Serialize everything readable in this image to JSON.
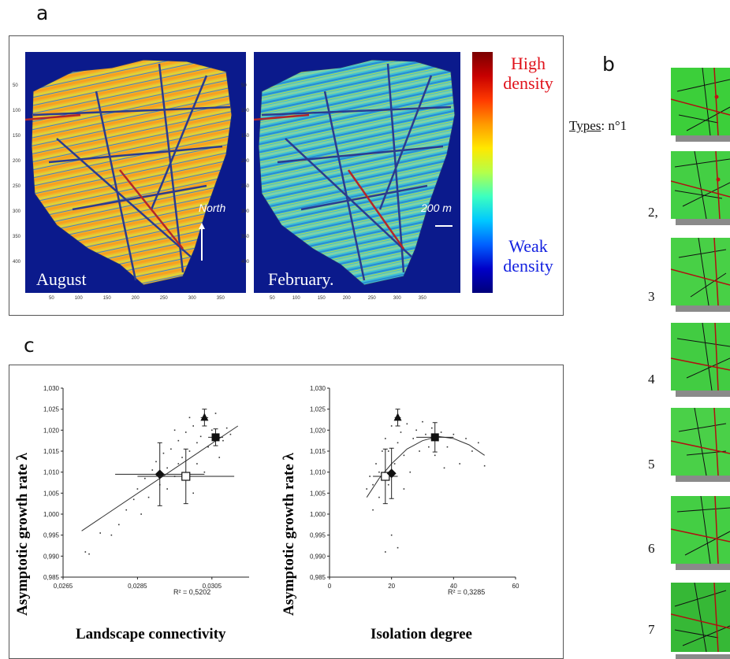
{
  "panels": {
    "a": "a",
    "b": "b",
    "c": "c"
  },
  "maps": {
    "left_label": "August",
    "right_label": "February.",
    "north_label": "North",
    "scale_label": "200 m",
    "y_ticks": [
      "50",
      "100",
      "150",
      "200",
      "250",
      "300",
      "350",
      "400"
    ],
    "x_ticks": [
      "50",
      "100",
      "150",
      "200",
      "250",
      "300",
      "350"
    ]
  },
  "colorbar": {
    "high_line1": "High",
    "high_line2": "density",
    "weak_line1": "Weak",
    "weak_line2": "density",
    "colors": {
      "high": "#e0121b",
      "weak": "#1422e0"
    }
  },
  "types": {
    "header": "Types",
    "first_suffix": ": n°1",
    "labels": [
      "2,",
      "3",
      "4",
      "5",
      "6",
      "7"
    ]
  },
  "charts_text": {
    "ylabel": "Asymptotic growth rate λ",
    "left_xlabel": "Landscape connectivity",
    "right_xlabel": "Isolation degree",
    "left_r2": "R² = 0,5202",
    "right_r2": "R² = 0,3285",
    "left_y_ticks": [
      "1,030",
      "1,025",
      "1,020",
      "1,015",
      "1,010",
      "1,005",
      "1,000",
      "0,995",
      "0,990",
      "0,985"
    ],
    "right_y_ticks": [
      "1,030",
      "1,025",
      "1,020",
      "1,015",
      "1,010",
      "1,005",
      "1,000",
      "0,995",
      "0,990",
      "0,985"
    ],
    "left_x_ticks": [
      "0,0265",
      "0,0285",
      "0,0305"
    ],
    "right_x_ticks": [
      "0",
      "20",
      "40",
      "60"
    ]
  },
  "chart_data": [
    {
      "type": "scatter",
      "xlabel": "Landscape connectivity",
      "ylabel": "Asymptotic growth rate λ",
      "xlim": [
        0.0265,
        0.0315
      ],
      "ylim": [
        0.985,
        1.03
      ],
      "r_squared": 0.5202,
      "fit": "linear",
      "fit_line": [
        [
          0.027,
          0.996
        ],
        [
          0.0312,
          1.021
        ]
      ],
      "group_means": [
        {
          "marker": "diamond",
          "x": 0.0291,
          "y": 1.0095,
          "xerr": 0.0012,
          "yerr": 0.0075
        },
        {
          "marker": "open-square",
          "x": 0.0298,
          "y": 1.009,
          "xerr": 0.0013,
          "yerr": 0.0065
        },
        {
          "marker": "triangle",
          "x": 0.0303,
          "y": 1.023,
          "xerr": 0.0001,
          "yerr": 0.002
        },
        {
          "marker": "square",
          "x": 0.0306,
          "y": 1.0183,
          "xerr": 0.0002,
          "yerr": 0.002
        }
      ],
      "points": [
        [
          0.0271,
          0.991
        ],
        [
          0.0272,
          0.9905
        ],
        [
          0.0275,
          0.9955
        ],
        [
          0.0278,
          0.995
        ],
        [
          0.028,
          0.9975
        ],
        [
          0.0282,
          1.001
        ],
        [
          0.0284,
          1.0035
        ],
        [
          0.0285,
          1.006
        ],
        [
          0.0286,
          1.0
        ],
        [
          0.0287,
          1.0085
        ],
        [
          0.0288,
          1.004
        ],
        [
          0.0289,
          1.0105
        ],
        [
          0.029,
          1.0125
        ],
        [
          0.0291,
          1.007
        ],
        [
          0.0292,
          1.0145
        ],
        [
          0.0293,
          1.011
        ],
        [
          0.0294,
          1.0155
        ],
        [
          0.0295,
          1.009
        ],
        [
          0.0296,
          1.0175
        ],
        [
          0.0297,
          1.0135
        ],
        [
          0.0298,
          1.0195
        ],
        [
          0.0299,
          1.015
        ],
        [
          0.03,
          1.021
        ],
        [
          0.0301,
          1.017
        ],
        [
          0.0302,
          1.0185
        ],
        [
          0.0303,
          1.0225
        ],
        [
          0.0304,
          1.016
        ],
        [
          0.0305,
          1.02
        ],
        [
          0.0306,
          1.024
        ],
        [
          0.0307,
          1.0135
        ],
        [
          0.0308,
          1.0175
        ],
        [
          0.0309,
          1.0205
        ],
        [
          0.031,
          1.019
        ],
        [
          0.0293,
          1.006
        ],
        [
          0.0296,
          1.012
        ],
        [
          0.03,
          1.005
        ],
        [
          0.0303,
          1.01
        ],
        [
          0.0295,
          1.02
        ],
        [
          0.0299,
          1.023
        ],
        [
          0.0301,
          1.012
        ]
      ]
    },
    {
      "type": "scatter",
      "xlabel": "Isolation degree",
      "ylabel": "Asymptotic growth rate λ",
      "xlim": [
        0,
        60
      ],
      "ylim": [
        0.985,
        1.03
      ],
      "r_squared": 0.3285,
      "fit": "polynomial",
      "fit_line": [
        [
          12,
          1.004
        ],
        [
          16,
          1.0085
        ],
        [
          20,
          1.012
        ],
        [
          25,
          1.0155
        ],
        [
          30,
          1.0175
        ],
        [
          35,
          1.0185
        ],
        [
          40,
          1.018
        ],
        [
          45,
          1.0165
        ],
        [
          50,
          1.014
        ]
      ],
      "group_means": [
        {
          "marker": "open-square",
          "x": 18,
          "y": 1.009,
          "xerr": 4,
          "yerr": 0.0065
        },
        {
          "marker": "diamond",
          "x": 20,
          "y": 1.0097,
          "xerr": 1,
          "yerr": 0.006
        },
        {
          "marker": "triangle",
          "x": 22,
          "y": 1.023,
          "xerr": 1,
          "yerr": 0.002
        },
        {
          "marker": "square",
          "x": 34,
          "y": 1.0183,
          "xerr": 6,
          "yerr": 0.0035
        }
      ],
      "points": [
        [
          12,
          1.006
        ],
        [
          13,
          1.009
        ],
        [
          14,
          1.001
        ],
        [
          15,
          1.012
        ],
        [
          16,
          1.004
        ],
        [
          17,
          1.015
        ],
        [
          18,
          0.991
        ],
        [
          18,
          1.018
        ],
        [
          19,
          1.007
        ],
        [
          20,
          1.021
        ],
        [
          20,
          0.995
        ],
        [
          21,
          1.012
        ],
        [
          22,
          1.017
        ],
        [
          22,
          0.992
        ],
        [
          23,
          1.0195
        ],
        [
          24,
          1.014
        ],
        [
          25,
          1.0215
        ],
        [
          26,
          1.01
        ],
        [
          27,
          1.018
        ],
        [
          28,
          1.02
        ],
        [
          29,
          1.015
        ],
        [
          30,
          1.022
        ],
        [
          31,
          1.019
        ],
        [
          32,
          1.016
        ],
        [
          33,
          1.0205
        ],
        [
          34,
          1.014
        ],
        [
          35,
          1.0175
        ],
        [
          36,
          1.0195
        ],
        [
          37,
          1.011
        ],
        [
          38,
          1.016
        ],
        [
          40,
          1.019
        ],
        [
          42,
          1.012
        ],
        [
          44,
          1.018
        ],
        [
          46,
          1.015
        ],
        [
          48,
          1.017
        ],
        [
          50,
          1.0115
        ],
        [
          14,
          1.007
        ],
        [
          16,
          1.01
        ],
        [
          19,
          1.015
        ],
        [
          24,
          1.006
        ]
      ]
    }
  ]
}
